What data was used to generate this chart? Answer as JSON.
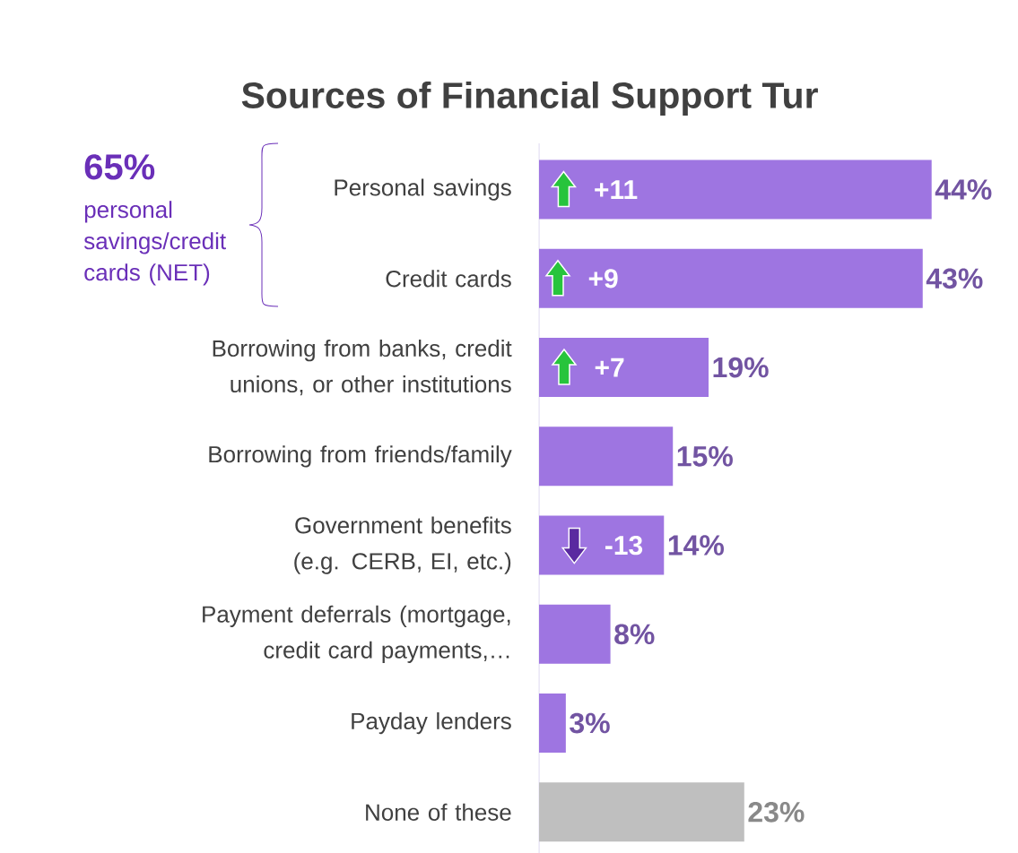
{
  "chart_data": {
    "type": "bar",
    "orientation": "horizontal",
    "title": "Sources of Financial Support Tur",
    "categories": [
      "Personal savings",
      "Credit cards",
      "Borrowing from banks, credit unions, or other institutions",
      "Borrowing from friends/family",
      "Government benefits (e.g. CERB, EI, etc.)",
      "Payment deferrals (mortgage, credit card payments,…",
      "Payday lenders",
      "None of these"
    ],
    "values": [
      44,
      43,
      19,
      15,
      14,
      8,
      3,
      23
    ],
    "colors": [
      "#9e75e1",
      "#9e75e1",
      "#9e75e1",
      "#9e75e1",
      "#9e75e1",
      "#9e75e1",
      "#9e75e1",
      "#bfbfbf"
    ],
    "value_labels": [
      "44%",
      "43%",
      "19%",
      "15%",
      "14%",
      "8%",
      "3%",
      "23%"
    ],
    "annotations": [
      "65%",
      "personal savings/credit cards (NET)",
      "+11",
      "+9",
      "+7",
      "-13"
    ]
  }
}
